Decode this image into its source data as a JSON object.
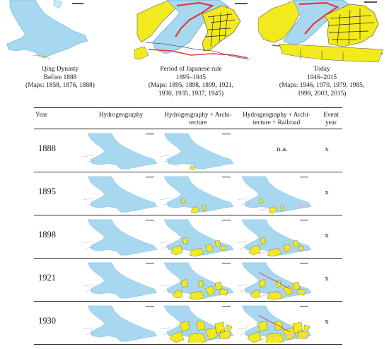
{
  "periods": [
    {
      "title": "Qing Dynasty",
      "years": "Before 1888",
      "maps": [
        "(Maps: 1858, 1876, 1888)"
      ]
    },
    {
      "title": "Period of Japanese rule",
      "years": "1895–1945",
      "maps": [
        "(Maps: 1895, 1898, 1899, 1921,",
        "1930, 1935, 1937, 1945)"
      ]
    },
    {
      "title": "Today",
      "years": "1946–2015",
      "maps": [
        "(Maps: 1946, 1970, 1979, 1985,",
        "1999, 2003, 2015)"
      ]
    }
  ],
  "table": {
    "headers": {
      "year": "Year",
      "hydro": "Hydrogeography",
      "arch_1": "Hydrogeography + Archi-",
      "arch_2": "tecture",
      "rail_1": "Hydrogeography + Archi-",
      "rail_2": "tecture + Railroad",
      "event_1": "Event",
      "event_2": "year"
    },
    "rows": [
      {
        "year": "1888",
        "rail": "n.a.",
        "event": "x"
      },
      {
        "year": "1895",
        "event": "x"
      },
      {
        "year": "1898",
        "event": "x"
      },
      {
        "year": "1921",
        "event": "x"
      },
      {
        "year": "1930",
        "event": "x"
      }
    ]
  },
  "colors": {
    "water": "#a8d8f0",
    "water_edge": "#7fbfdf",
    "architecture": "#f2ea1c",
    "railroad": "#e23a3a",
    "railroad_light": "#f0a6c4"
  }
}
